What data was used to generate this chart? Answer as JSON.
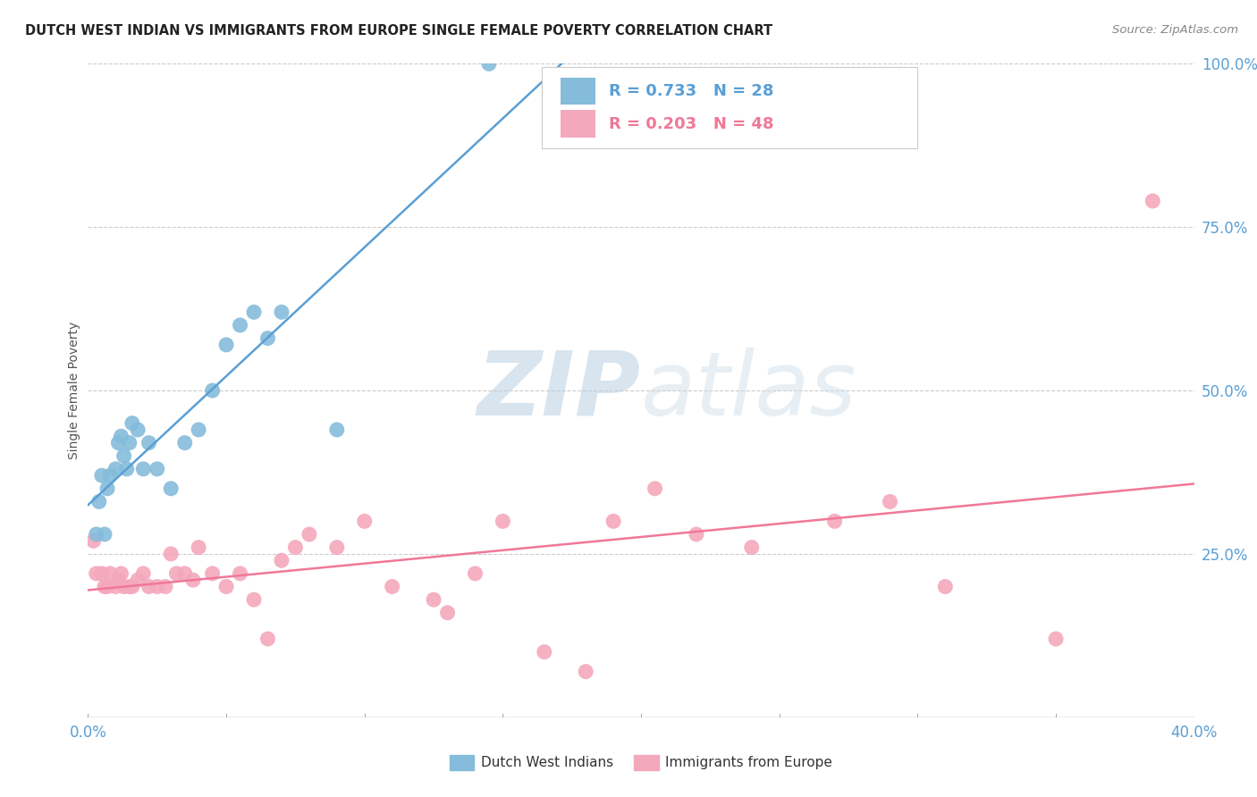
{
  "title": "DUTCH WEST INDIAN VS IMMIGRANTS FROM EUROPE SINGLE FEMALE POVERTY CORRELATION CHART",
  "source": "Source: ZipAtlas.com",
  "ylabel": "Single Female Poverty",
  "r1": 0.733,
  "n1": 28,
  "r2": 0.203,
  "n2": 48,
  "color_blue": "#85bcdb",
  "color_pink": "#f4a8bc",
  "line_color_blue": "#5a9fd4",
  "line_color_pink": "#f07898",
  "legend_label1": "Dutch West Indians",
  "legend_label2": "Immigrants from Europe",
  "watermark_zip": "ZIP",
  "watermark_atlas": "atlas",
  "blue_x": [
    0.3,
    0.4,
    0.5,
    0.6,
    0.7,
    0.8,
    1.0,
    1.1,
    1.2,
    1.3,
    1.4,
    1.5,
    1.6,
    1.8,
    2.0,
    2.2,
    2.5,
    3.0,
    3.5,
    4.0,
    4.5,
    5.0,
    5.5,
    6.0,
    6.5,
    7.0,
    9.0,
    14.5
  ],
  "blue_y": [
    28.0,
    33.0,
    37.0,
    28.0,
    35.0,
    37.0,
    38.0,
    42.0,
    43.0,
    40.0,
    38.0,
    42.0,
    45.0,
    44.0,
    38.0,
    42.0,
    38.0,
    35.0,
    42.0,
    44.0,
    50.0,
    57.0,
    60.0,
    62.0,
    58.0,
    62.0,
    44.0,
    100.0
  ],
  "pink_x": [
    0.2,
    0.3,
    0.5,
    0.6,
    0.7,
    0.8,
    1.0,
    1.1,
    1.2,
    1.3,
    1.5,
    1.6,
    1.8,
    2.0,
    2.2,
    2.5,
    2.8,
    3.0,
    3.2,
    3.5,
    3.8,
    4.0,
    4.5,
    5.0,
    5.5,
    6.0,
    6.5,
    7.0,
    7.5,
    8.0,
    9.0,
    10.0,
    11.0,
    12.5,
    13.0,
    14.0,
    15.0,
    16.5,
    18.0,
    19.0,
    20.5,
    22.0,
    24.0,
    27.0,
    29.0,
    31.0,
    35.0,
    38.5
  ],
  "pink_y": [
    27.0,
    22.0,
    22.0,
    20.0,
    20.0,
    22.0,
    20.0,
    21.0,
    22.0,
    20.0,
    20.0,
    20.0,
    21.0,
    22.0,
    20.0,
    20.0,
    20.0,
    25.0,
    22.0,
    22.0,
    21.0,
    26.0,
    22.0,
    20.0,
    22.0,
    18.0,
    12.0,
    24.0,
    26.0,
    28.0,
    26.0,
    30.0,
    20.0,
    18.0,
    16.0,
    22.0,
    30.0,
    10.0,
    7.0,
    30.0,
    35.0,
    28.0,
    26.0,
    30.0,
    33.0,
    20.0,
    12.0,
    79.0
  ],
  "xmin": 0.0,
  "xmax": 40.0,
  "ymin": 0.0,
  "ymax": 100.0,
  "ytick_vals": [
    25,
    50,
    75,
    100
  ],
  "ytick_labels": [
    "25.0%",
    "50.0%",
    "75.0%",
    "100.0%"
  ],
  "xtick_left_label": "0.0%",
  "xtick_right_label": "40.0%"
}
